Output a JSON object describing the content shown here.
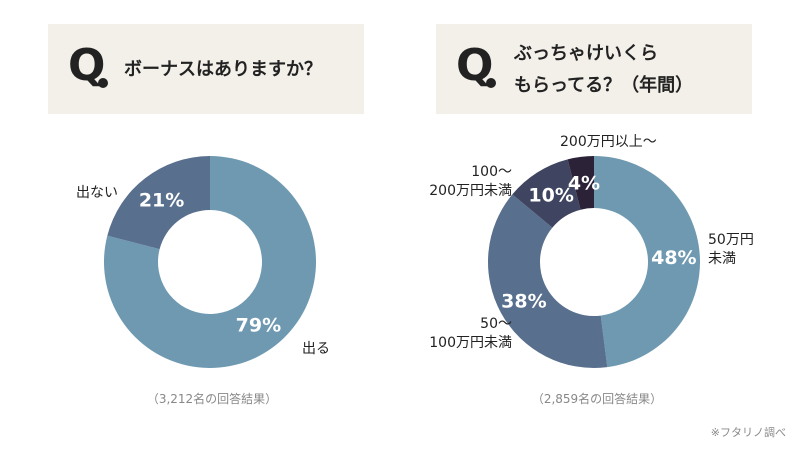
{
  "questions": [
    {
      "mark": "Q",
      "lines": [
        "ボーナスはありますか？"
      ]
    },
    {
      "mark": "Q",
      "lines": [
        "ぶっちゃけいくら",
        "もらってる？（年間）"
      ]
    }
  ],
  "chart_data": [
    {
      "type": "pie",
      "donut": true,
      "categories": [
        "出る",
        "出ない"
      ],
      "values": [
        79,
        21
      ],
      "value_labels": [
        "79%",
        "21%"
      ],
      "colors": [
        "#6e99b1",
        "#586f8e"
      ],
      "caption": "（3,212名の回答結果）"
    },
    {
      "type": "pie",
      "donut": true,
      "categories": [
        "50万円\n未満",
        "50〜\n100万円未満",
        "100〜\n200万円未満",
        "200万円以上〜"
      ],
      "values": [
        48,
        38,
        10,
        4
      ],
      "value_labels": [
        "48%",
        "38%",
        "10%",
        "4%"
      ],
      "colors": [
        "#6e99b1",
        "#586f8e",
        "#3f4460",
        "#2b2237"
      ],
      "caption": "（2,859名の回答結果）"
    }
  ],
  "source": "※フタリノ調べ"
}
